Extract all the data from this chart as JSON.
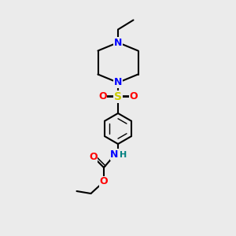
{
  "background_color": "#ebebeb",
  "fig_width": 3.0,
  "fig_height": 3.0,
  "dpi": 100,
  "colors": {
    "C": "#000000",
    "N": "#0000ff",
    "O": "#ff0000",
    "S": "#cccc00",
    "H": "#008080",
    "bond": "#000000"
  },
  "lw": 1.5,
  "lw_double": 1.2
}
